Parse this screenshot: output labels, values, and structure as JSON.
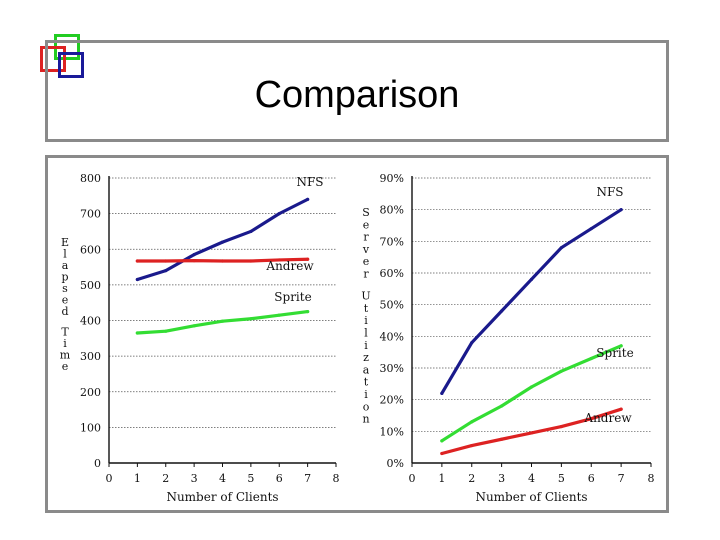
{
  "slide": {
    "title": "Comparison"
  },
  "colors": {
    "nfs": "#1a1a8c",
    "andrew": "#dd2222",
    "sprite": "#33dd33",
    "frame": "#8a8a8a"
  },
  "chart_data": [
    {
      "type": "line",
      "title": "",
      "xlabel": "Number of Clients",
      "ylabel": "Elapsed Time",
      "xlim": [
        0,
        8
      ],
      "ylim": [
        0,
        800
      ],
      "xticks": [
        "0",
        "1",
        "2",
        "3",
        "4",
        "5",
        "6",
        "7",
        "8"
      ],
      "yticks": [
        "0",
        "100",
        "200",
        "300",
        "400",
        "500",
        "600",
        "700",
        "800"
      ],
      "grid": true,
      "series": [
        {
          "name": "NFS",
          "color": "#1a1a8c",
          "x": [
            1,
            2,
            3,
            4,
            5,
            6,
            7
          ],
          "y": [
            515,
            540,
            585,
            620,
            650,
            700,
            740
          ]
        },
        {
          "name": "Andrew",
          "color": "#dd2222",
          "x": [
            1,
            2,
            3,
            4,
            5,
            6,
            7
          ],
          "y": [
            567,
            567,
            568,
            567,
            567,
            570,
            572
          ]
        },
        {
          "name": "Sprite",
          "color": "#33dd33",
          "x": [
            1,
            2,
            3,
            4,
            5,
            6,
            7
          ],
          "y": [
            365,
            370,
            385,
            398,
            405,
            415,
            425
          ]
        }
      ]
    },
    {
      "type": "line",
      "title": "",
      "xlabel": "Number of Clients",
      "ylabel": "Server Utilization",
      "xlim": [
        0,
        8
      ],
      "ylim": [
        0,
        90
      ],
      "xticks": [
        "0",
        "1",
        "2",
        "3",
        "4",
        "5",
        "6",
        "7",
        "8"
      ],
      "yticks": [
        "0%",
        "10%",
        "20%",
        "30%",
        "40%",
        "50%",
        "60%",
        "70%",
        "80%",
        "90%"
      ],
      "grid": true,
      "series": [
        {
          "name": "NFS",
          "color": "#1a1a8c",
          "x": [
            1,
            2,
            3,
            4,
            5,
            6,
            7
          ],
          "y": [
            22,
            38,
            48,
            58,
            68,
            74,
            80
          ]
        },
        {
          "name": "Sprite",
          "color": "#33dd33",
          "x": [
            1,
            2,
            3,
            4,
            5,
            6,
            7
          ],
          "y": [
            7,
            13,
            18,
            24,
            29,
            33,
            37
          ]
        },
        {
          "name": "Andrew",
          "color": "#dd2222",
          "x": [
            1,
            2,
            3,
            4,
            5,
            6,
            7
          ],
          "y": [
            3,
            5.5,
            7.5,
            9.5,
            11.5,
            14,
            17
          ]
        }
      ]
    }
  ]
}
